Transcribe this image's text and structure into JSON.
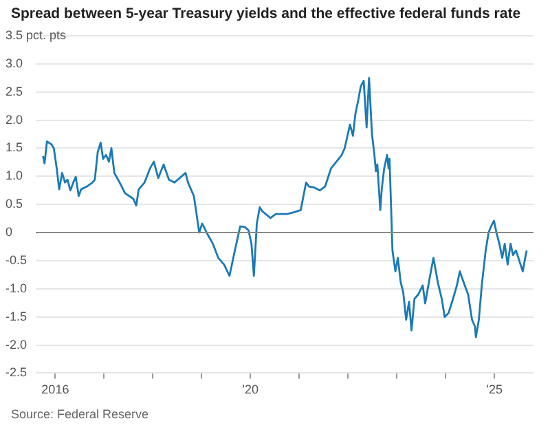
{
  "chart_data": {
    "type": "line",
    "title": "Spread between 5-year Treasury yields and the effective federal funds rate",
    "annotations": [
      "Source: Federal Reserve"
    ],
    "xlim": [
      2015.6,
      2025.8
    ],
    "xticks": [
      {
        "value": 2016,
        "label": "2016"
      },
      {
        "value": 2017,
        "label": null
      },
      {
        "value": 2018,
        "label": null
      },
      {
        "value": 2019,
        "label": null
      },
      {
        "value": 2020,
        "label": "'20"
      },
      {
        "value": 2021,
        "label": null
      },
      {
        "value": 2022,
        "label": null
      },
      {
        "value": 2023,
        "label": null
      },
      {
        "value": 2024,
        "label": null
      },
      {
        "value": 2025,
        "label": "'25"
      }
    ],
    "ylim": [
      -2.5,
      3.5
    ],
    "yticks": [
      {
        "value": 3.5,
        "label": "3.5 pct. pts"
      },
      {
        "value": 3,
        "label": "3.0"
      },
      2.5,
      {
        "value": 2,
        "label": "2.0"
      },
      1.5,
      {
        "value": 1,
        "label": "1.0"
      },
      0.5,
      0,
      -0.5,
      {
        "value": -1,
        "label": "-1.0"
      },
      -1.5,
      {
        "value": -2,
        "label": "-2.0"
      },
      -2.5
    ],
    "grid": "y",
    "legend": false,
    "marker": "none",
    "line_style": "solid",
    "ref_lines": [
      {
        "axis": "y",
        "value": 0,
        "label": null,
        "color": "#888888"
      }
    ],
    "series": [
      {
        "color": "#1a7ab5",
        "x": [
          2015.75,
          2015.78,
          2015.83,
          2015.92,
          2015.97,
          2016.03,
          2016.08,
          2016.14,
          2016.2,
          2016.25,
          2016.31,
          2016.37,
          2016.42,
          2016.48,
          2016.53,
          2016.65,
          2016.76,
          2016.81,
          2016.87,
          2016.93,
          2016.98,
          2017.04,
          2017.1,
          2017.15,
          2017.21,
          2017.32,
          2017.43,
          2017.6,
          2017.66,
          2017.71,
          2017.83,
          2017.94,
          2018.02,
          2018.11,
          2018.22,
          2018.33,
          2018.44,
          2018.67,
          2018.72,
          2018.84,
          2018.89,
          2018.95,
          2019.01,
          2019.12,
          2019.23,
          2019.34,
          2019.46,
          2019.57,
          2019.68,
          2019.79,
          2019.88,
          2019.96,
          2020.02,
          2020.07,
          2020.13,
          2020.19,
          2020.24,
          2020.41,
          2020.52,
          2020.75,
          2020.89,
          2021.03,
          2021.14,
          2021.2,
          2021.31,
          2021.42,
          2021.53,
          2021.65,
          2021.76,
          2021.87,
          2021.93,
          2022.04,
          2022.1,
          2022.15,
          2022.21,
          2022.26,
          2022.32,
          2022.38,
          2022.43,
          2022.49,
          2022.54,
          2022.57,
          2022.6,
          2022.66,
          2022.69,
          2022.74,
          2022.8,
          2022.83,
          2022.85,
          2022.91,
          2022.97,
          2023.02,
          2023.08,
          2023.13,
          2023.19,
          2023.25,
          2023.3,
          2023.36,
          2023.44,
          2023.53,
          2023.58,
          2023.67,
          2023.75,
          2023.84,
          2023.92,
          2023.98,
          2024.06,
          2024.15,
          2024.23,
          2024.29,
          2024.37,
          2024.46,
          2024.54,
          2024.6,
          2024.62,
          2024.68,
          2024.74,
          2024.82,
          2024.88,
          2024.93,
          2024.99,
          2025.04,
          2025.1,
          2025.16,
          2025.21,
          2025.27,
          2025.33,
          2025.38,
          2025.44,
          2025.49,
          2025.58,
          2025.63,
          2025.66
        ],
        "values": [
          1.36,
          1.23,
          1.62,
          1.57,
          1.5,
          1.14,
          0.77,
          1.06,
          0.89,
          0.94,
          0.75,
          0.89,
          0.99,
          0.65,
          0.77,
          0.82,
          0.89,
          0.94,
          1.43,
          1.6,
          1.31,
          1.38,
          1.26,
          1.5,
          1.06,
          0.89,
          0.7,
          0.6,
          0.48,
          0.77,
          0.89,
          1.14,
          1.26,
          0.97,
          1.21,
          0.94,
          0.89,
          1.06,
          0.89,
          0.65,
          0.36,
          0,
          0.16,
          -0.03,
          -0.2,
          -0.45,
          -0.57,
          -0.77,
          -0.32,
          0.11,
          0.1,
          0.04,
          -0.2,
          -0.77,
          0.16,
          0.45,
          0.38,
          0.26,
          0.33,
          0.33,
          0.36,
          0.4,
          0.89,
          0.82,
          0.8,
          0.75,
          0.82,
          1.14,
          1.26,
          1.38,
          1.5,
          1.92,
          1.72,
          2.11,
          2.36,
          2.6,
          2.7,
          1.87,
          2.75,
          1.75,
          1.38,
          1.09,
          1.21,
          0.4,
          0.77,
          1.14,
          1.38,
          1.14,
          1.31,
          -0.32,
          -0.69,
          -0.45,
          -0.89,
          -1.06,
          -1.55,
          -1.23,
          -1.74,
          -1.18,
          -1.1,
          -0.94,
          -1.26,
          -0.82,
          -0.45,
          -0.89,
          -1.18,
          -1.5,
          -1.43,
          -1.18,
          -0.94,
          -0.69,
          -0.89,
          -1.1,
          -1.55,
          -1.67,
          -1.86,
          -1.55,
          -0.94,
          -0.32,
          0,
          0.11,
          0.21,
          0,
          -0.2,
          -0.45,
          -0.2,
          -0.57,
          -0.2,
          -0.4,
          -0.32,
          -0.45,
          -0.69,
          -0.45,
          -0.32
        ]
      }
    ]
  }
}
